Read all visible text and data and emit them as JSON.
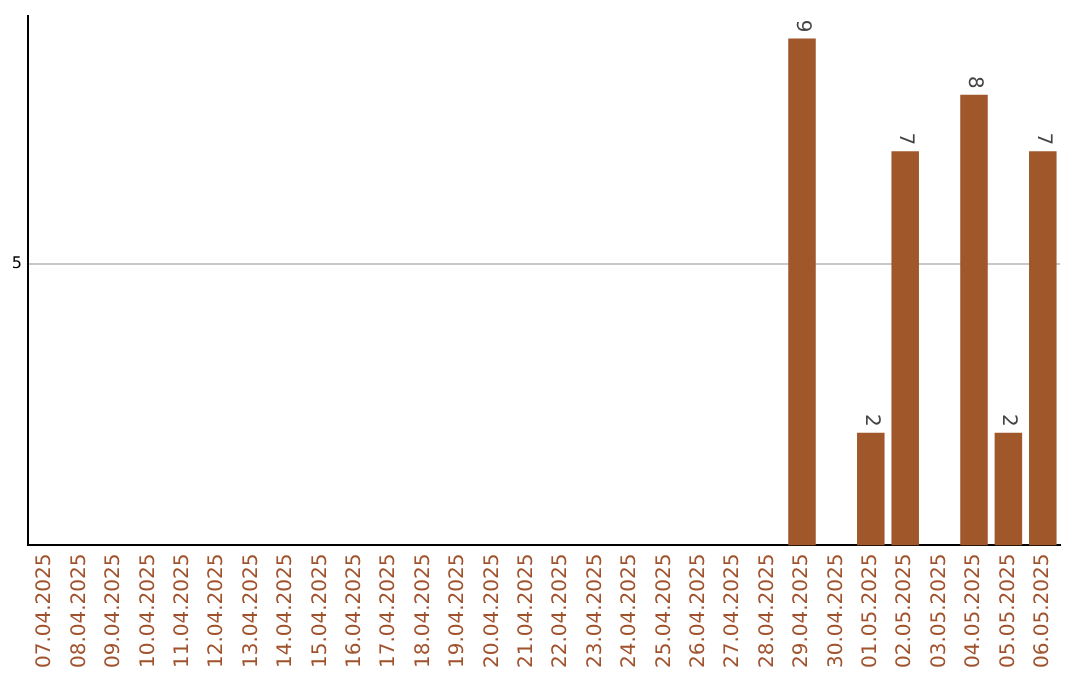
{
  "chart_data": {
    "type": "bar",
    "categories": [
      "07.04.2025",
      "08.04.2025",
      "09.04.2025",
      "10.04.2025",
      "11.04.2025",
      "12.04.2025",
      "13.04.2025",
      "14.04.2025",
      "15.04.2025",
      "16.04.2025",
      "17.04.2025",
      "18.04.2025",
      "19.04.2025",
      "20.04.2025",
      "21.04.2025",
      "22.04.2025",
      "23.04.2025",
      "24.04.2025",
      "25.04.2025",
      "26.04.2025",
      "27.04.2025",
      "28.04.2025",
      "29.04.2025",
      "30.04.2025",
      "01.05.2025",
      "02.05.2025",
      "03.05.2025",
      "04.05.2025",
      "05.05.2025",
      "06.05.2025"
    ],
    "values": [
      null,
      null,
      null,
      null,
      null,
      null,
      null,
      null,
      null,
      null,
      null,
      null,
      null,
      null,
      null,
      null,
      null,
      null,
      null,
      null,
      null,
      null,
      9,
      null,
      2,
      7,
      null,
      8,
      2,
      7
    ],
    "data_labels": true,
    "color": "#a0572a",
    "ylim": [
      0,
      9.4
    ],
    "yticks": [
      5
    ],
    "grid": "y"
  }
}
